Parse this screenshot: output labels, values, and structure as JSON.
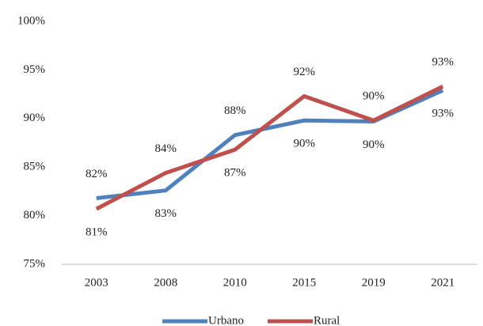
{
  "chart_data": {
    "type": "line",
    "categories": [
      "2003",
      "2008",
      "2010",
      "2015",
      "2019",
      "2021"
    ],
    "series": [
      {
        "name": "Urbano",
        "color": "#4f81bd",
        "values": [
          81.8,
          82.6,
          88.3,
          89.8,
          89.7,
          92.9
        ],
        "value_labels": [
          "82%",
          "83%",
          "88%",
          "90%",
          "90%",
          "93%"
        ]
      },
      {
        "name": "Rural",
        "color": "#c0504d",
        "values": [
          80.7,
          84.4,
          86.8,
          92.3,
          89.8,
          93.3
        ],
        "value_labels": [
          "81%",
          "84%",
          "87%",
          "92%",
          "90%",
          "93%"
        ]
      }
    ],
    "ylim": [
      75,
      100
    ],
    "yticks": [
      {
        "value": 75,
        "label": "75%"
      },
      {
        "value": 80,
        "label": "80%"
      },
      {
        "value": 85,
        "label": "85%"
      },
      {
        "value": 90,
        "label": "90%"
      },
      {
        "value": 95,
        "label": "95%"
      },
      {
        "value": 100,
        "label": "100%"
      }
    ],
    "grid": false,
    "legend": "bottom"
  }
}
